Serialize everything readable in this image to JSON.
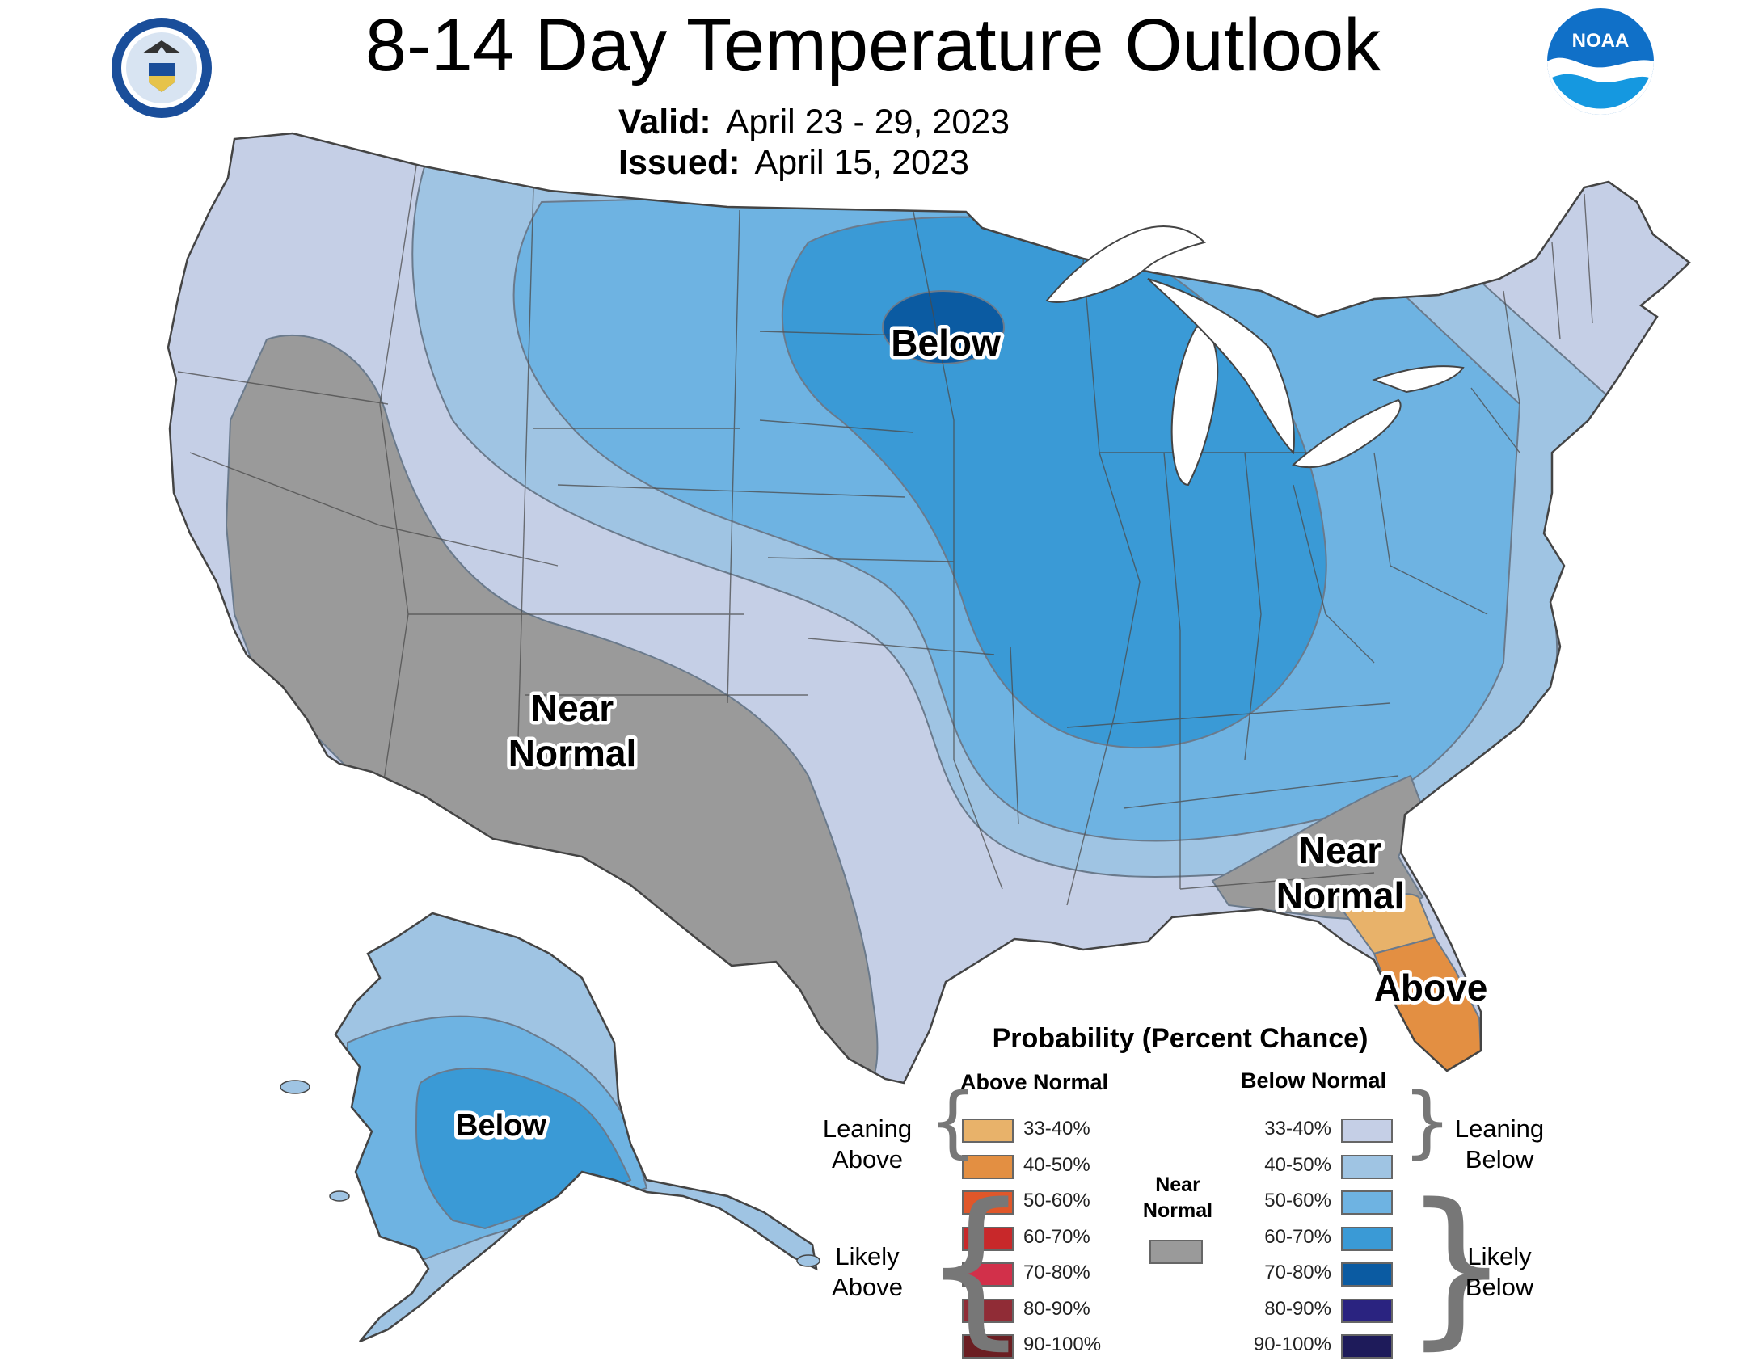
{
  "title": "8-14 Day Temperature Outlook",
  "valid_label": "Valid:",
  "valid_value": "April 23 - 29, 2023",
  "issued_label": "Issued:",
  "issued_value": "April 15, 2023",
  "logos": {
    "left": {
      "icon": "us-department-of-commerce-seal",
      "text": "DEPARTMENT OF COMMERCE · UNITED STATES OF AMERICA"
    },
    "right": {
      "icon": "noaa-logo",
      "text": "NOAA"
    }
  },
  "map_labels": {
    "below_conus": "Below",
    "near_normal_west_1": "Near",
    "near_normal_west_2": "Normal",
    "near_normal_se_1": "Near",
    "near_normal_se_2": "Normal",
    "above_fl": "Above",
    "below_ak": "Below"
  },
  "legend": {
    "title": "Probability (Percent Chance)",
    "above_heading": "Above Normal",
    "below_heading": "Below Normal",
    "near_normal_1": "Near",
    "near_normal_2": "Normal",
    "near_normal_color": "#9a9a9a",
    "leaning_above_1": "Leaning",
    "leaning_above_2": "Above",
    "likely_above_1": "Likely",
    "likely_above_2": "Above",
    "leaning_below_1": "Leaning",
    "leaning_below_2": "Below",
    "likely_below_1": "Likely",
    "likely_below_2": "Below",
    "above": [
      {
        "label": "33-40%",
        "color": "#e8b26a"
      },
      {
        "label": "40-50%",
        "color": "#e38f42"
      },
      {
        "label": "50-60%",
        "color": "#e0572a"
      },
      {
        "label": "60-70%",
        "color": "#c8282a"
      },
      {
        "label": "70-80%",
        "color": "#d2304a"
      },
      {
        "label": "80-90%",
        "color": "#902c36"
      },
      {
        "label": "90-100%",
        "color": "#6b1e22"
      }
    ],
    "below": [
      {
        "label": "33-40%",
        "color": "#c5cfe6"
      },
      {
        "label": "40-50%",
        "color": "#9fc4e3"
      },
      {
        "label": "50-60%",
        "color": "#6eb3e2"
      },
      {
        "label": "60-70%",
        "color": "#3a9ad6"
      },
      {
        "label": "70-80%",
        "color": "#0b5ba2"
      },
      {
        "label": "80-90%",
        "color": "#2a2380"
      },
      {
        "label": "90-100%",
        "color": "#1e1b5a"
      }
    ]
  }
}
